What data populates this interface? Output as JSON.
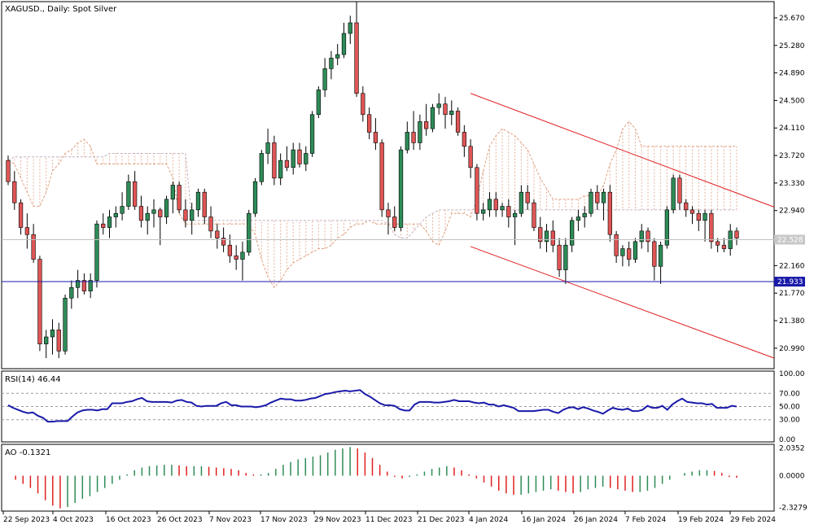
{
  "window": {
    "title": "XAGUSD., Daily:  Spot Silver"
  },
  "colors": {
    "bull": "#2e8b57",
    "bear": "#e05555",
    "ichimoku": "#e0a080",
    "channel": "#e02020",
    "level": "#1a1aaa",
    "rsi": "#1a1aaa",
    "ao_up": "#2e8b57",
    "ao_down": "#e02020",
    "grid": "#cccccc"
  },
  "chart_data": [
    {
      "type": "candlestick",
      "title": "XAGUSD., Daily:  Spot Silver",
      "ylim": [
        20.7,
        25.9
      ],
      "y_ticks": [
        "25.670",
        "25.280",
        "24.890",
        "24.500",
        "24.110",
        "23.720",
        "23.330",
        "22.940",
        "22.550",
        "22.160",
        "21.770",
        "21.380",
        "20.990"
      ],
      "x_ticks": [
        "22 Sep 2023",
        "4 Oct 2023",
        "16 Oct 2023",
        "26 Oct 2023",
        "7 Nov 2023",
        "17 Nov 2023",
        "29 Nov 2023",
        "11 Dec 2023",
        "21 Dec 2023",
        "4 Jan 2024",
        "16 Jan 2024",
        "26 Jan 2024",
        "7 Feb 2024",
        "19 Feb 2024",
        "29 Feb 2024"
      ],
      "current_price": "22.528",
      "horizontal_level": "21.933",
      "candles": [
        [
          23.65,
          23.72,
          23.3,
          23.35
        ],
        [
          23.35,
          23.5,
          22.95,
          23.05
        ],
        [
          23.05,
          23.1,
          22.6,
          22.7
        ],
        [
          22.7,
          22.9,
          22.4,
          22.6
        ],
        [
          22.6,
          22.75,
          22.2,
          22.25
        ],
        [
          22.25,
          22.3,
          20.95,
          21.05
        ],
        [
          21.05,
          21.25,
          20.85,
          21.15
        ],
        [
          21.15,
          21.4,
          20.9,
          21.25
        ],
        [
          21.25,
          21.35,
          20.85,
          20.95
        ],
        [
          20.95,
          21.75,
          20.9,
          21.7
        ],
        [
          21.7,
          21.95,
          21.55,
          21.85
        ],
        [
          21.85,
          22.1,
          21.7,
          21.95
        ],
        [
          21.95,
          22.05,
          21.75,
          21.8
        ],
        [
          21.8,
          22.05,
          21.7,
          21.95
        ],
        [
          21.95,
          22.8,
          21.85,
          22.75
        ],
        [
          22.75,
          22.9,
          22.6,
          22.7
        ],
        [
          22.7,
          22.95,
          22.55,
          22.85
        ],
        [
          22.85,
          23.0,
          22.7,
          22.9
        ],
        [
          22.9,
          23.2,
          22.8,
          23.0
        ],
        [
          23.0,
          23.45,
          22.95,
          23.35
        ],
        [
          23.35,
          23.5,
          22.95,
          23.0
        ],
        [
          23.0,
          23.15,
          22.7,
          22.8
        ],
        [
          22.8,
          23.0,
          22.6,
          22.9
        ],
        [
          22.9,
          23.1,
          22.7,
          22.95
        ],
        [
          22.95,
          22.98,
          22.45,
          22.85
        ],
        [
          22.85,
          23.15,
          22.75,
          23.1
        ],
        [
          23.1,
          23.35,
          22.9,
          23.3
        ],
        [
          23.3,
          23.35,
          22.9,
          22.95
        ],
        [
          22.95,
          23.1,
          22.7,
          22.8
        ],
        [
          22.8,
          23.05,
          22.6,
          22.95
        ],
        [
          22.95,
          23.25,
          22.85,
          23.2
        ],
        [
          23.2,
          23.25,
          22.75,
          22.85
        ],
        [
          22.85,
          23.0,
          22.55,
          22.65
        ],
        [
          22.65,
          22.75,
          22.4,
          22.55
        ],
        [
          22.55,
          22.7,
          22.35,
          22.45
        ],
        [
          22.45,
          22.6,
          22.2,
          22.3
        ],
        [
          22.3,
          22.45,
          22.1,
          22.25
        ],
        [
          22.25,
          22.5,
          21.95,
          22.35
        ],
        [
          22.35,
          22.95,
          22.3,
          22.9
        ],
        [
          22.9,
          23.4,
          22.85,
          23.35
        ],
        [
          23.35,
          23.8,
          23.3,
          23.75
        ],
        [
          23.75,
          24.1,
          23.6,
          23.9
        ],
        [
          23.9,
          24.0,
          23.3,
          23.4
        ],
        [
          23.4,
          23.75,
          23.3,
          23.65
        ],
        [
          23.65,
          23.85,
          23.5,
          23.55
        ],
        [
          23.55,
          23.9,
          23.45,
          23.8
        ],
        [
          23.8,
          23.9,
          23.55,
          23.6
        ],
        [
          23.6,
          23.85,
          23.5,
          23.75
        ],
        [
          23.75,
          24.35,
          23.7,
          24.3
        ],
        [
          24.3,
          24.7,
          24.25,
          24.65
        ],
        [
          24.65,
          25.1,
          24.55,
          24.95
        ],
        [
          24.95,
          25.2,
          24.8,
          25.1
        ],
        [
          25.1,
          25.3,
          25.0,
          25.15
        ],
        [
          25.15,
          25.6,
          25.1,
          25.45
        ],
        [
          25.45,
          25.7,
          25.3,
          25.6
        ],
        [
          25.6,
          25.9,
          24.55,
          24.6
        ],
        [
          24.6,
          24.7,
          24.2,
          24.3
        ],
        [
          24.3,
          24.4,
          23.95,
          24.05
        ],
        [
          24.05,
          24.25,
          23.8,
          23.9
        ],
        [
          23.9,
          23.95,
          22.85,
          22.95
        ],
        [
          22.95,
          23.05,
          22.6,
          22.85
        ],
        [
          22.85,
          23.0,
          22.65,
          22.7
        ],
        [
          22.7,
          23.85,
          22.65,
          23.8
        ],
        [
          23.8,
          24.2,
          23.75,
          24.05
        ],
        [
          24.05,
          24.35,
          23.8,
          23.9
        ],
        [
          23.9,
          24.3,
          23.8,
          24.2
        ],
        [
          24.2,
          24.45,
          24.0,
          24.1
        ],
        [
          24.1,
          24.45,
          24.05,
          24.4
        ],
        [
          24.4,
          24.6,
          24.3,
          24.45
        ],
        [
          24.45,
          24.55,
          24.1,
          24.3
        ],
        [
          24.3,
          24.5,
          24.15,
          24.35
        ],
        [
          24.35,
          24.4,
          24.0,
          24.05
        ],
        [
          24.05,
          24.15,
          23.7,
          23.85
        ],
        [
          23.85,
          23.95,
          23.4,
          23.55
        ],
        [
          23.55,
          23.6,
          22.8,
          22.9
        ],
        [
          22.9,
          23.05,
          22.8,
          22.95
        ],
        [
          22.95,
          23.2,
          22.85,
          23.1
        ],
        [
          23.1,
          23.2,
          22.85,
          22.95
        ],
        [
          22.95,
          23.05,
          22.85,
          23.0
        ],
        [
          23.0,
          23.1,
          22.7,
          22.85
        ],
        [
          22.85,
          22.95,
          22.45,
          22.9
        ],
        [
          22.9,
          23.3,
          22.85,
          23.2
        ],
        [
          23.2,
          23.3,
          22.95,
          23.05
        ],
        [
          23.05,
          23.1,
          22.65,
          22.7
        ],
        [
          22.7,
          22.85,
          22.4,
          22.5
        ],
        [
          22.5,
          22.75,
          22.35,
          22.65
        ],
        [
          22.65,
          22.8,
          22.35,
          22.45
        ],
        [
          22.45,
          22.55,
          22.0,
          22.1
        ],
        [
          22.1,
          22.55,
          21.9,
          22.45
        ],
        [
          22.45,
          22.85,
          22.35,
          22.8
        ],
        [
          22.8,
          22.95,
          22.65,
          22.85
        ],
        [
          22.85,
          23.0,
          22.7,
          22.9
        ],
        [
          22.9,
          23.25,
          22.85,
          23.2
        ],
        [
          23.2,
          23.3,
          22.95,
          23.05
        ],
        [
          23.05,
          23.25,
          22.8,
          23.2
        ],
        [
          23.2,
          23.3,
          22.5,
          22.6
        ],
        [
          22.6,
          22.65,
          22.2,
          22.3
        ],
        [
          22.3,
          22.45,
          22.15,
          22.4
        ],
        [
          22.4,
          22.5,
          22.15,
          22.25
        ],
        [
          22.25,
          22.55,
          22.2,
          22.5
        ],
        [
          22.5,
          22.75,
          22.4,
          22.65
        ],
        [
          22.65,
          22.7,
          22.35,
          22.5
        ],
        [
          22.5,
          22.55,
          21.95,
          22.15
        ],
        [
          22.15,
          22.5,
          21.9,
          22.45
        ],
        [
          22.45,
          23.0,
          22.4,
          22.95
        ],
        [
          22.95,
          23.45,
          22.9,
          23.4
        ],
        [
          23.4,
          23.45,
          22.95,
          23.05
        ],
        [
          23.05,
          23.1,
          22.85,
          22.95
        ],
        [
          22.95,
          23.0,
          22.75,
          22.9
        ],
        [
          22.9,
          22.95,
          22.65,
          22.8
        ],
        [
          22.8,
          22.95,
          22.5,
          22.9
        ],
        [
          22.9,
          22.95,
          22.4,
          22.5
        ],
        [
          22.5,
          22.55,
          22.35,
          22.45
        ],
        [
          22.45,
          22.55,
          22.35,
          22.4
        ],
        [
          22.4,
          22.75,
          22.3,
          22.65
        ],
        [
          22.65,
          22.7,
          22.45,
          22.55
        ]
      ],
      "ichimoku_a": [
        23.65,
        23.6,
        23.4,
        23.2,
        23.0,
        23.0,
        23.2,
        23.5,
        23.6,
        23.75,
        23.8,
        23.9,
        23.95,
        23.85,
        23.6,
        23.6,
        23.6,
        23.6,
        23.6,
        23.6,
        23.6,
        23.6,
        23.6,
        23.6,
        23.6,
        23.6,
        23.4,
        22.9,
        22.75,
        22.75,
        22.75,
        22.75,
        22.75,
        22.75,
        22.75,
        22.75,
        22.75,
        22.75,
        22.75,
        22.6,
        22.25,
        22.0,
        21.85,
        21.95,
        22.1,
        22.2,
        22.25,
        22.3,
        22.35,
        22.4,
        22.4,
        22.45,
        22.55,
        22.6,
        22.7,
        22.75,
        22.75,
        22.8,
        22.75,
        22.75,
        22.75,
        22.75,
        22.75,
        22.75,
        22.75,
        22.75,
        22.65,
        22.5,
        22.45,
        22.65,
        22.9,
        22.9,
        22.9,
        22.85,
        23.1,
        23.5,
        23.85,
        24.0,
        24.1,
        24.05,
        24.0,
        23.9,
        23.8,
        23.6,
        23.4,
        23.25,
        23.1,
        23.1,
        23.1,
        23.1,
        23.1,
        23.15,
        23.15,
        23.15,
        23.3,
        23.6,
        23.8,
        24.1,
        24.2,
        24.1,
        23.85,
        23.85,
        23.85,
        23.85,
        23.85,
        23.85,
        23.85,
        23.85,
        23.85,
        23.85,
        23.85,
        23.85,
        23.85,
        23.85,
        23.85,
        23.85
      ],
      "ichimoku_b": [
        23.65,
        23.7,
        23.7,
        23.7,
        23.7,
        23.7,
        23.7,
        23.7,
        23.7,
        23.7,
        23.7,
        23.7,
        23.7,
        23.7,
        23.7,
        23.7,
        23.75,
        23.75,
        23.75,
        23.75,
        23.75,
        23.75,
        23.75,
        23.75,
        23.75,
        23.75,
        23.75,
        23.75,
        23.75,
        22.8,
        22.8,
        22.8,
        22.8,
        22.8,
        22.8,
        22.8,
        22.8,
        22.8,
        22.8,
        22.8,
        22.8,
        22.8,
        22.8,
        22.8,
        22.8,
        22.8,
        22.8,
        22.8,
        22.8,
        22.8,
        22.8,
        22.8,
        22.8,
        22.8,
        22.8,
        22.8,
        22.8,
        22.8,
        22.8,
        22.8,
        22.75,
        22.6,
        22.55,
        22.55,
        22.65,
        22.75,
        22.85,
        22.9,
        22.95,
        22.95,
        22.95,
        22.95,
        22.95,
        22.95,
        22.95,
        22.95,
        22.95,
        22.95,
        22.95,
        22.95,
        22.95,
        22.95,
        22.95,
        22.95,
        22.95,
        22.95,
        22.95,
        22.95,
        22.95,
        22.95,
        22.95,
        22.95,
        22.95,
        22.95,
        22.95,
        22.95,
        22.95,
        22.95,
        22.95,
        22.95,
        22.95,
        22.95,
        22.95,
        22.95,
        22.95,
        22.95,
        22.95,
        22.95,
        22.95,
        22.95,
        22.95,
        22.95,
        22.95,
        22.95,
        22.95,
        22.95
      ],
      "ichimoku_a_note": "",
      "channel_upper": [
        [
          24.6,
          22.99
        ]
      ],
      "channel_lower": [
        [
          22.43,
          20.85
        ]
      ]
    },
    {
      "type": "line",
      "title": "RSI(14) 46.44",
      "ylim": [
        0,
        100
      ],
      "y_ticks": [
        "100.00",
        "70.00",
        "50.00",
        "30.00",
        "0.00"
      ],
      "levels": [
        30,
        50,
        70
      ],
      "values": [
        52,
        48,
        45,
        42,
        40,
        41,
        36,
        33,
        27,
        27,
        28,
        28,
        28,
        35,
        41,
        44,
        45,
        45,
        44,
        46,
        46,
        55,
        55,
        55,
        57,
        58,
        61,
        63,
        58,
        57,
        57,
        57,
        57,
        56,
        59,
        60,
        57,
        56,
        51,
        50,
        51,
        51,
        51,
        55,
        57,
        52,
        52,
        50,
        50,
        50,
        49,
        50,
        52,
        56,
        59,
        62,
        61,
        61,
        59,
        59,
        60,
        62,
        63,
        66,
        69,
        70,
        72,
        73,
        74,
        73,
        74,
        75,
        69,
        65,
        60,
        55,
        52,
        52,
        51,
        46,
        44,
        44,
        53,
        57,
        57,
        57,
        56,
        56,
        57,
        58,
        60,
        58,
        58,
        58,
        56,
        55,
        56,
        53,
        53,
        50,
        52,
        50,
        48,
        43,
        43,
        43,
        43,
        44,
        45,
        45,
        42,
        40,
        45,
        48,
        49,
        46,
        49,
        47,
        44,
        42,
        39,
        44,
        48,
        46,
        45,
        47,
        43,
        43,
        45,
        51,
        48,
        48,
        51,
        45,
        53,
        58,
        62,
        57,
        56,
        55,
        55,
        53,
        54,
        48,
        48,
        48,
        51,
        50
      ]
    },
    {
      "type": "bar",
      "title": "AO -0.1321",
      "ylim": [
        -2.6,
        2.3
      ],
      "y_ticks": [
        "2.0352",
        "0.0000",
        "-2.3279"
      ],
      "values": [
        0.0,
        -0.3,
        -0.6,
        -0.9,
        -1.3,
        -1.8,
        -2.2,
        -2.4,
        -2.3,
        -2.0,
        -1.7,
        -1.5,
        -1.2,
        -0.9,
        -0.6,
        -0.3,
        0.1,
        0.4,
        0.6,
        0.7,
        0.75,
        0.8,
        0.8,
        0.75,
        0.7,
        0.7,
        0.7,
        0.65,
        0.6,
        0.55,
        0.5,
        0.4,
        0.2,
        0.1,
        0.1,
        0.2,
        0.5,
        0.8,
        1.0,
        1.2,
        1.3,
        1.4,
        1.5,
        1.7,
        1.9,
        2.0,
        2.1,
        2.0,
        1.7,
        1.3,
        0.8,
        0.3,
        -0.1,
        -0.2,
        -0.1,
        0.1,
        0.3,
        0.5,
        0.6,
        0.7,
        0.6,
        0.4,
        0.1,
        -0.2,
        -0.5,
        -0.8,
        -1.1,
        -1.3,
        -1.4,
        -1.4,
        -1.3,
        -1.2,
        -1.1,
        -1.0,
        -1.1,
        -1.2,
        -1.3,
        -1.2,
        -1.0,
        -0.9,
        -0.8,
        -0.9,
        -1.0,
        -1.1,
        -1.2,
        -1.2,
        -1.1,
        -0.9,
        -0.6,
        -0.3,
        0.0,
        0.2,
        0.3,
        0.4,
        0.4,
        0.35,
        0.2,
        -0.1,
        -0.15
      ]
    }
  ]
}
